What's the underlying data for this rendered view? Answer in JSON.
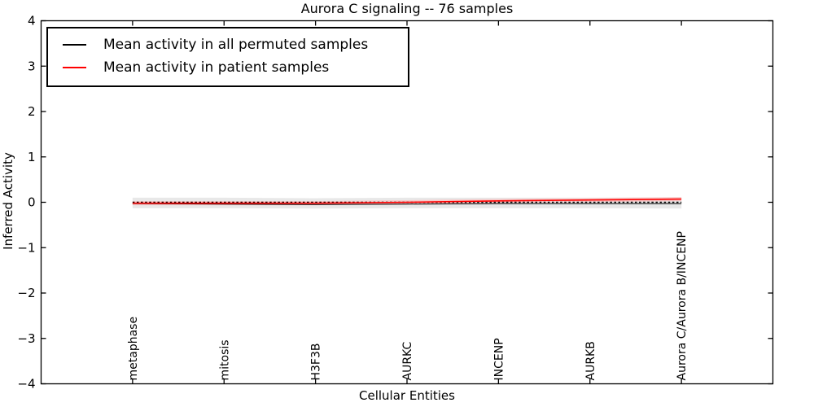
{
  "figure": {
    "title": "Aurora C signaling -- 76 samples",
    "xlabel": "Cellular Entities",
    "ylabel": "Inferred Activity"
  },
  "legend": {
    "items": [
      {
        "label": "Mean activity in all permuted samples",
        "color": "#000000"
      },
      {
        "label": "Mean activity in patient samples",
        "color": "#ff0000"
      }
    ]
  },
  "chart_data": {
    "type": "line",
    "title": "Aurora C signaling -- 76 samples",
    "xlabel": "Cellular Entities",
    "ylabel": "Inferred Activity",
    "xlim": [
      0,
      8
    ],
    "ylim": [
      -4,
      4
    ],
    "grid": false,
    "legend_position": "upper left",
    "yticks": {
      "values": [
        4,
        3,
        2,
        1,
        0,
        -1,
        -2,
        -3,
        -4
      ],
      "labels": [
        "4",
        "3",
        "2",
        "1",
        "0",
        "−1",
        "−2",
        "−3",
        "−4"
      ]
    },
    "categories": [
      "metaphase",
      "mitosis",
      "H3F3B",
      "AURKC",
      "INCENP",
      "AURKB",
      "Aurora C/Aurora B/INCENP"
    ],
    "x": [
      1,
      2,
      3,
      4,
      5,
      6,
      7
    ],
    "series": [
      {
        "name": "Mean activity in all permuted samples",
        "color": "#000000",
        "style": "solid",
        "width": 1,
        "values": [
          -0.03,
          -0.04,
          -0.05,
          -0.04,
          -0.03,
          -0.03,
          -0.03
        ]
      },
      {
        "name": "Mean activity in patient samples",
        "color": "#ff0000",
        "style": "solid",
        "width": 1.6,
        "values": [
          -0.02,
          -0.02,
          -0.02,
          0.0,
          0.03,
          0.05,
          0.07
        ]
      }
    ],
    "bands": [
      {
        "name": "permuted-confidence-band",
        "color": "#e8e8e8",
        "opacity": 1,
        "upper": [
          0.1,
          0.1,
          0.09,
          0.1,
          0.1,
          0.1,
          0.11
        ],
        "lower": [
          -0.13,
          -0.13,
          -0.14,
          -0.13,
          -0.13,
          -0.13,
          -0.14
        ]
      },
      {
        "name": "patient-confidence-band",
        "color": "#ffb4b4",
        "opacity": 0.6,
        "upper": [
          0.025,
          0.025,
          0.025,
          0.045,
          0.075,
          0.095,
          0.115
        ],
        "lower": [
          -0.065,
          -0.065,
          -0.065,
          -0.045,
          -0.015,
          0.005,
          0.025
        ]
      }
    ],
    "zero_line": {
      "y": 0,
      "style": "dotted",
      "color": "#000000"
    }
  }
}
